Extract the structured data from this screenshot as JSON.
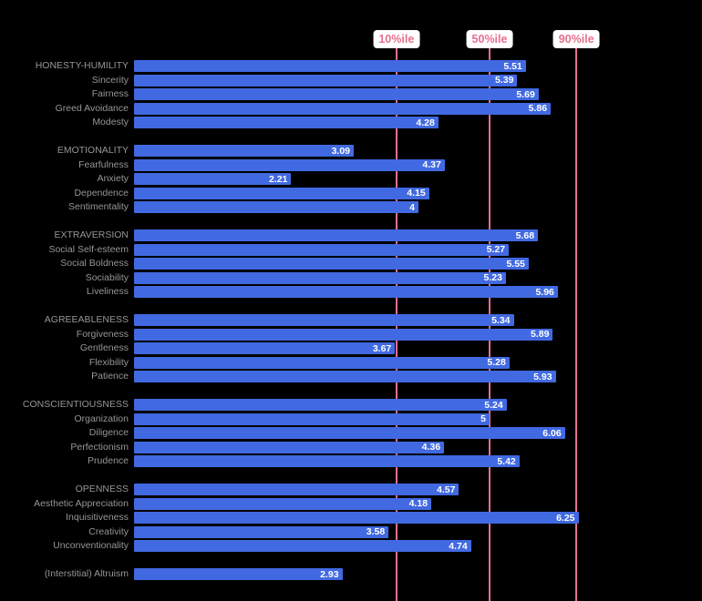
{
  "chart_data": {
    "type": "bar",
    "orientation": "horizontal",
    "title": "",
    "xlabel": "",
    "ylabel": "",
    "xlim": [
      0,
      7
    ],
    "grid": false,
    "legend": "none",
    "colors": {
      "bar": "#4169e1",
      "line": "#e8708f",
      "label": "#969696",
      "value": "#ffffff",
      "background": "#000000",
      "percentile_label_bg": "#ffffff"
    },
    "percentile_lines": [
      {
        "label": "10%ile",
        "value": 3.69
      },
      {
        "label": "50%ile",
        "value": 5.0
      },
      {
        "label": "90%ile",
        "value": 6.22
      }
    ],
    "groups": [
      {
        "rows": [
          {
            "label": "HONESTY-HUMILITY",
            "value": 5.51
          },
          {
            "label": "Sincerity",
            "value": 5.39
          },
          {
            "label": "Fairness",
            "value": 5.69
          },
          {
            "label": "Greed Avoidance",
            "value": 5.86
          },
          {
            "label": "Modesty",
            "value": 4.28
          }
        ]
      },
      {
        "rows": [
          {
            "label": "EMOTIONALITY",
            "value": 3.09
          },
          {
            "label": "Fearfulness",
            "value": 4.37
          },
          {
            "label": "Anxiety",
            "value": 2.21
          },
          {
            "label": "Dependence",
            "value": 4.15
          },
          {
            "label": "Sentimentality",
            "value": 4
          }
        ]
      },
      {
        "rows": [
          {
            "label": "EXTRAVERSION",
            "value": 5.68
          },
          {
            "label": "Social Self-esteem",
            "value": 5.27
          },
          {
            "label": "Social Boldness",
            "value": 5.55
          },
          {
            "label": "Sociability",
            "value": 5.23
          },
          {
            "label": "Liveliness",
            "value": 5.96
          }
        ]
      },
      {
        "rows": [
          {
            "label": "AGREEABLENESS",
            "value": 5.34
          },
          {
            "label": "Forgiveness",
            "value": 5.89
          },
          {
            "label": "Gentleness",
            "value": 3.67
          },
          {
            "label": "Flexibility",
            "value": 5.28
          },
          {
            "label": "Patience",
            "value": 5.93
          }
        ]
      },
      {
        "rows": [
          {
            "label": "CONSCIENTIOUSNESS",
            "value": 5.24
          },
          {
            "label": "Organization",
            "value": 5
          },
          {
            "label": "Diligence",
            "value": 6.06
          },
          {
            "label": "Perfectionism",
            "value": 4.36
          },
          {
            "label": "Prudence",
            "value": 5.42
          }
        ]
      },
      {
        "rows": [
          {
            "label": "OPENNESS",
            "value": 4.57
          },
          {
            "label": "Aesthetic Appreciation",
            "value": 4.18
          },
          {
            "label": "Inquisitiveness",
            "value": 6.25
          },
          {
            "label": "Creativity",
            "value": 3.58
          },
          {
            "label": "Unconventionality",
            "value": 4.74
          }
        ]
      },
      {
        "rows": [
          {
            "label": "(Interstitial) Altruism",
            "value": 2.93
          }
        ]
      }
    ]
  }
}
